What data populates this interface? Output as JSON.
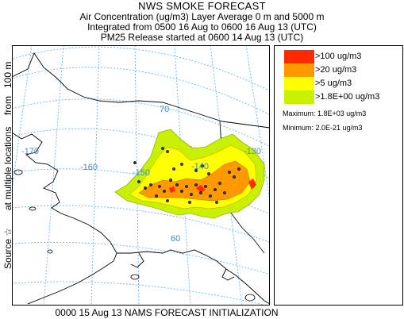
{
  "header": {
    "title": "NWS SMOKE FORECAST",
    "line2": "Air Concentration (ug/m3) Layer Average    0 m and  5000 m",
    "line3": "Integrated from 0500 16 Aug to 0600 16 Aug 13 (UTC)",
    "line4": "PM25 Release started at 0600 14 Aug 13 (UTC)"
  },
  "side_label": {
    "source": "Source ☆",
    "multiple": "at multiple locations",
    "from": "from",
    "height": "100 m"
  },
  "map": {
    "graticule_labels": {
      "lon_170": "-170",
      "lon_160": "-160",
      "lon_150": "-150",
      "lon_140": "-140",
      "lon_130": "-130",
      "lat_70": "70",
      "lat_60": "60"
    },
    "colors": {
      "coast": "#000000",
      "graticule": "#5aaee6",
      "label": "#3a8fd0"
    }
  },
  "legend": {
    "items": [
      {
        "label": ">100 ug/m3",
        "color": "#ff2a00"
      },
      {
        "label": ">20 ug/m3",
        "color": "#ff9900"
      },
      {
        "label": ">5 ug/m3",
        "color": "#ffff00"
      },
      {
        "label": ">1.8E+00 ug/m3",
        "color": "#c8f000"
      }
    ],
    "maximum": "Maximum: 1.8E+03 ug/m3",
    "minimum": "Minimum: 2.0E-21 ug/m3"
  },
  "footer": "0000 15 Aug 13 NAMS FORECAST INITIALIZATION"
}
